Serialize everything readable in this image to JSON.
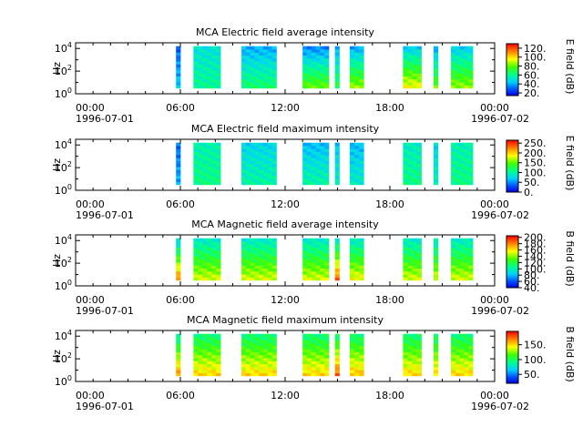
{
  "chart_data": [
    {
      "type": "heatmap",
      "title": "MCA  Electric field average intensity",
      "ylabel": "Hz",
      "colorbar_label": "E field (dB)",
      "colorbar_ticks": [
        "120.",
        "100.",
        "80.",
        "60.",
        "40.",
        "20."
      ],
      "colorbar_range": [
        14,
        130
      ],
      "x_ticks": [
        "00:00",
        "06:00",
        "12:00",
        "18:00",
        "00:00"
      ],
      "x_tick_hours": [
        0,
        6,
        12,
        18,
        24
      ],
      "x_dates": [
        "1996-07-01",
        "1996-07-02"
      ],
      "y_ticks": [
        "10",
        "10",
        "10"
      ],
      "y_tick_exponents": [
        "0",
        "2",
        "4"
      ],
      "ylim_log10": [
        0,
        4.5
      ],
      "data_blocks": [
        {
          "start_h": 5.75,
          "end_h": 6.0,
          "low_log10": 0.5,
          "high_log10": 4.2,
          "level_low": 45,
          "level_high": 30
        },
        {
          "start_h": 6.75,
          "end_h": 8.3,
          "low_log10": 0.5,
          "high_log10": 4.2,
          "level_low": 60,
          "level_high": 50
        },
        {
          "start_h": 9.5,
          "end_h": 11.5,
          "low_log10": 0.5,
          "high_log10": 4.2,
          "level_low": 65,
          "level_high": 40
        },
        {
          "start_h": 13.0,
          "end_h": 14.5,
          "low_log10": 0.5,
          "high_log10": 4.2,
          "level_low": 80,
          "level_high": 35
        },
        {
          "start_h": 14.85,
          "end_h": 15.1,
          "low_log10": 0.5,
          "high_log10": 4.2,
          "level_low": 70,
          "level_high": 40
        },
        {
          "start_h": 15.7,
          "end_h": 16.5,
          "low_log10": 0.5,
          "high_log10": 4.2,
          "level_low": 85,
          "level_high": 40
        },
        {
          "start_h": 18.75,
          "end_h": 19.8,
          "low_log10": 0.5,
          "high_log10": 4.2,
          "level_low": 95,
          "level_high": 45
        },
        {
          "start_h": 20.5,
          "end_h": 20.75,
          "low_log10": 0.5,
          "high_log10": 4.2,
          "level_low": 80,
          "level_high": 40
        },
        {
          "start_h": 21.5,
          "end_h": 22.75,
          "low_log10": 0.5,
          "high_log10": 4.2,
          "level_low": 85,
          "level_high": 45
        }
      ]
    },
    {
      "type": "heatmap",
      "title": "MCA  Electric field maximum intensity",
      "ylabel": "Hz",
      "colorbar_label": "E field (dB)",
      "colorbar_ticks": [
        "250.",
        "200.",
        "150.",
        "100.",
        "50.",
        "0."
      ],
      "colorbar_range": [
        0,
        265
      ],
      "x_ticks": [
        "00:00",
        "06:00",
        "12:00",
        "18:00",
        "00:00"
      ],
      "x_tick_hours": [
        0,
        6,
        12,
        18,
        24
      ],
      "x_dates": [
        "1996-07-01",
        "1996-07-02"
      ],
      "y_ticks": [
        "10",
        "10",
        "10"
      ],
      "y_tick_exponents": [
        "0",
        "2",
        "4"
      ],
      "ylim_log10": [
        0,
        4.5
      ],
      "data_blocks": [
        {
          "start_h": 5.75,
          "end_h": 6.0,
          "low_log10": 0.5,
          "high_log10": 4.2,
          "level_low": 60,
          "level_high": 40
        },
        {
          "start_h": 6.75,
          "end_h": 8.3,
          "low_log10": 0.5,
          "high_log10": 4.2,
          "level_low": 110,
          "level_high": 95
        },
        {
          "start_h": 9.5,
          "end_h": 11.5,
          "low_log10": 0.5,
          "high_log10": 4.2,
          "level_low": 100,
          "level_high": 75
        },
        {
          "start_h": 13.0,
          "end_h": 14.5,
          "low_log10": 0.5,
          "high_log10": 4.2,
          "level_low": 100,
          "level_high": 65
        },
        {
          "start_h": 14.85,
          "end_h": 15.1,
          "low_log10": 0.5,
          "high_log10": 4.2,
          "level_low": 90,
          "level_high": 70
        },
        {
          "start_h": 15.7,
          "end_h": 16.5,
          "low_log10": 0.5,
          "high_log10": 4.2,
          "level_low": 90,
          "level_high": 65
        },
        {
          "start_h": 18.75,
          "end_h": 19.8,
          "low_log10": 0.5,
          "high_log10": 4.2,
          "level_low": 110,
          "level_high": 90
        },
        {
          "start_h": 20.5,
          "end_h": 20.75,
          "low_log10": 0.5,
          "high_log10": 4.2,
          "level_low": 95,
          "level_high": 75
        },
        {
          "start_h": 21.5,
          "end_h": 22.75,
          "low_log10": 0.5,
          "high_log10": 4.2,
          "level_low": 110,
          "level_high": 95
        }
      ]
    },
    {
      "type": "heatmap",
      "title": "MCA  Magnetic field average intensity",
      "ylabel": "Hz",
      "colorbar_label": "B field (dB)",
      "colorbar_ticks": [
        "200.",
        "180.",
        "160.",
        "140.",
        "120.",
        "100.",
        "80.",
        "60.",
        "40."
      ],
      "colorbar_range": [
        40,
        205
      ],
      "x_ticks": [
        "00:00",
        "06:00",
        "12:00",
        "18:00",
        "00:00"
      ],
      "x_tick_hours": [
        0,
        6,
        12,
        18,
        24
      ],
      "x_dates": [
        "1996-07-01",
        "1996-07-02"
      ],
      "y_ticks": [
        "10",
        "10",
        "10"
      ],
      "y_tick_exponents": [
        "0",
        "2",
        "4"
      ],
      "ylim_log10": [
        0,
        4.5
      ],
      "data_blocks": [
        {
          "start_h": 5.75,
          "end_h": 6.0,
          "low_log10": 0.5,
          "high_log10": 4.2,
          "level_low": 180,
          "level_high": 85
        },
        {
          "start_h": 6.75,
          "end_h": 8.3,
          "low_log10": 0.5,
          "high_log10": 4.2,
          "level_low": 150,
          "level_high": 95
        },
        {
          "start_h": 9.5,
          "end_h": 11.5,
          "low_log10": 0.5,
          "high_log10": 4.2,
          "level_low": 150,
          "level_high": 95
        },
        {
          "start_h": 13.0,
          "end_h": 14.5,
          "low_log10": 0.5,
          "high_log10": 4.2,
          "level_low": 150,
          "level_high": 95
        },
        {
          "start_h": 14.85,
          "end_h": 15.1,
          "low_log10": 0.5,
          "high_log10": 4.2,
          "level_low": 185,
          "level_high": 95
        },
        {
          "start_h": 15.7,
          "end_h": 16.5,
          "low_log10": 0.5,
          "high_log10": 4.2,
          "level_low": 155,
          "level_high": 95
        },
        {
          "start_h": 18.75,
          "end_h": 19.8,
          "low_log10": 0.5,
          "high_log10": 4.2,
          "level_low": 150,
          "level_high": 95
        },
        {
          "start_h": 20.5,
          "end_h": 20.75,
          "low_log10": 0.5,
          "high_log10": 4.2,
          "level_low": 150,
          "level_high": 95
        },
        {
          "start_h": 21.5,
          "end_h": 22.75,
          "low_log10": 0.5,
          "high_log10": 4.2,
          "level_low": 150,
          "level_high": 95
        }
      ]
    },
    {
      "type": "heatmap",
      "title": "MCA  Magnetic field maximum intensity",
      "ylabel": "Hz",
      "colorbar_label": "B field (dB)",
      "colorbar_ticks": [
        "150.",
        "100.",
        "50."
      ],
      "colorbar_range": [
        20,
        195
      ],
      "x_ticks": [
        "00:00",
        "06:00",
        "12:00",
        "18:00",
        "00:00"
      ],
      "x_tick_hours": [
        0,
        6,
        12,
        18,
        24
      ],
      "x_dates": [
        "1996-07-01",
        "1996-07-02"
      ],
      "y_ticks": [
        "10",
        "10",
        "10"
      ],
      "y_tick_exponents": [
        "0",
        "2",
        "4"
      ],
      "ylim_log10": [
        0,
        4.5
      ],
      "data_blocks": [
        {
          "start_h": 5.75,
          "end_h": 6.0,
          "low_log10": 0.5,
          "high_log10": 4.2,
          "level_low": 165,
          "level_high": 85
        },
        {
          "start_h": 6.75,
          "end_h": 8.3,
          "low_log10": 0.5,
          "high_log10": 4.2,
          "level_low": 150,
          "level_high": 95
        },
        {
          "start_h": 9.5,
          "end_h": 11.5,
          "low_log10": 0.5,
          "high_log10": 4.2,
          "level_low": 150,
          "level_high": 95
        },
        {
          "start_h": 13.0,
          "end_h": 14.5,
          "low_log10": 0.5,
          "high_log10": 4.2,
          "level_low": 150,
          "level_high": 95
        },
        {
          "start_h": 14.85,
          "end_h": 15.1,
          "low_log10": 0.5,
          "high_log10": 4.2,
          "level_low": 175,
          "level_high": 95
        },
        {
          "start_h": 15.7,
          "end_h": 16.5,
          "low_log10": 0.5,
          "high_log10": 4.2,
          "level_low": 155,
          "level_high": 95
        },
        {
          "start_h": 18.75,
          "end_h": 19.8,
          "low_log10": 0.5,
          "high_log10": 4.2,
          "level_low": 150,
          "level_high": 95
        },
        {
          "start_h": 20.5,
          "end_h": 20.75,
          "low_log10": 0.5,
          "high_log10": 4.2,
          "level_low": 150,
          "level_high": 95
        },
        {
          "start_h": 21.5,
          "end_h": 22.75,
          "low_log10": 0.5,
          "high_log10": 4.2,
          "level_low": 150,
          "level_high": 95
        }
      ]
    }
  ]
}
